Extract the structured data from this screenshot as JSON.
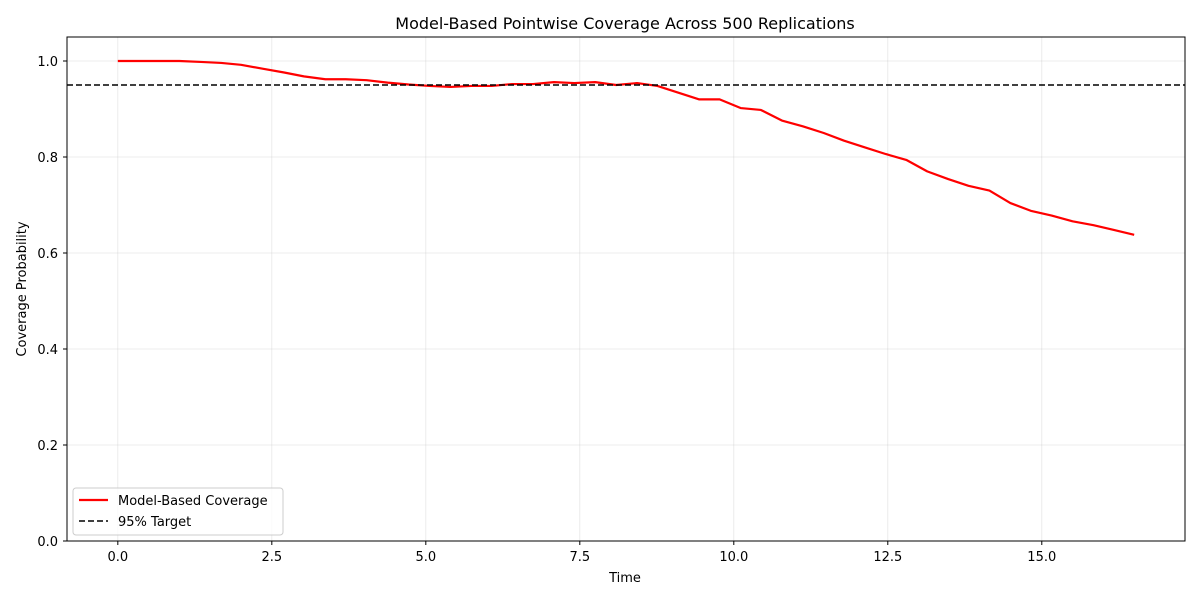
{
  "chart_data": {
    "type": "line",
    "title": "Model-Based Pointwise Coverage Across 500 Replications",
    "xlabel": "Time",
    "ylabel": "Coverage Probability",
    "xlim": [
      -0.825,
      17.325
    ],
    "ylim": [
      0.0,
      1.05
    ],
    "x_ticks": [
      0.0,
      2.5,
      5.0,
      7.5,
      10.0,
      12.5,
      15.0
    ],
    "x_tick_labels": [
      "0.0",
      "2.5",
      "5.0",
      "7.5",
      "10.0",
      "12.5",
      "15.0"
    ],
    "y_ticks": [
      0.0,
      0.2,
      0.4,
      0.6,
      0.8,
      1.0
    ],
    "y_tick_labels": [
      "0.0",
      "0.2",
      "0.4",
      "0.6",
      "0.8",
      "1.0"
    ],
    "grid": true,
    "legend_position": "lower-left",
    "series": [
      {
        "name": "Model-Based Coverage",
        "color": "#ff0000",
        "style": "solid",
        "x": [
          0.0,
          0.34,
          0.67,
          1.0,
          1.35,
          1.68,
          2.0,
          2.35,
          2.7,
          3.02,
          3.37,
          3.7,
          4.04,
          4.38,
          4.72,
          5.06,
          5.4,
          5.74,
          6.07,
          6.4,
          6.74,
          7.08,
          7.41,
          7.75,
          8.09,
          8.43,
          8.76,
          9.1,
          9.44,
          9.77,
          10.11,
          10.44,
          10.78,
          11.12,
          11.46,
          11.79,
          12.13,
          12.47,
          12.8,
          13.14,
          13.48,
          13.81,
          14.15,
          14.49,
          14.82,
          15.16,
          15.5,
          15.84,
          16.17,
          16.5
        ],
        "y": [
          1.0,
          1.0,
          1.0,
          1.0,
          0.998,
          0.996,
          0.992,
          0.984,
          0.976,
          0.968,
          0.962,
          0.962,
          0.96,
          0.955,
          0.951,
          0.948,
          0.946,
          0.948,
          0.948,
          0.952,
          0.952,
          0.956,
          0.954,
          0.956,
          0.95,
          0.954,
          0.948,
          0.934,
          0.92,
          0.92,
          0.902,
          0.898,
          0.876,
          0.864,
          0.85,
          0.834,
          0.82,
          0.806,
          0.794,
          0.77,
          0.754,
          0.74,
          0.73,
          0.704,
          0.688,
          0.678,
          0.666,
          0.658,
          0.648,
          0.638
        ]
      },
      {
        "name": "95% Target",
        "color": "#000000",
        "style": "dashed",
        "x": [
          -0.825,
          17.325
        ],
        "y": [
          0.95,
          0.95
        ]
      }
    ]
  }
}
